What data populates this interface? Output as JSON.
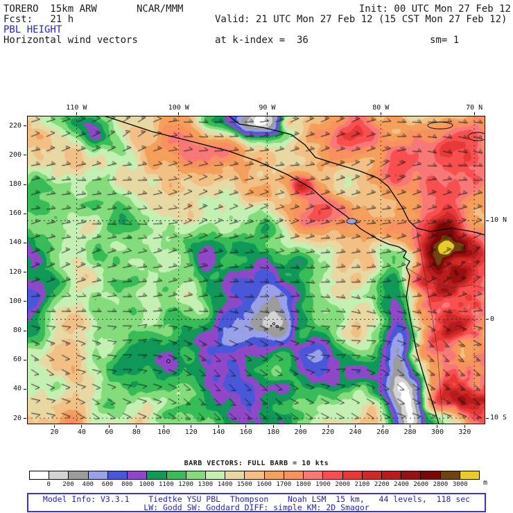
{
  "header": {
    "model": "TORERO  15km ARW",
    "center": "NCAR/MMM",
    "init": "Init: 00 UTC Mon 27 Feb 12",
    "fcst": "Fcst:   21 h",
    "valid": "Valid: 21 UTC Mon 27 Feb 12 (15 CST Mon 27 Feb 12)",
    "field": "PBL HEIGHT",
    "subtitle": "Horizontal wind vectors",
    "level": "at k-index =  36",
    "smoothing": "sm= 1"
  },
  "chart_data": {
    "type": "heatmap",
    "title": "PBL HEIGHT",
    "units": "m",
    "x_axis": {
      "ticks": [
        20,
        40,
        60,
        80,
        100,
        120,
        140,
        160,
        180,
        200,
        220,
        240,
        260,
        280,
        300,
        320
      ],
      "range": [
        0,
        335
      ]
    },
    "y_axis": {
      "ticks": [
        220,
        200,
        180,
        160,
        140,
        120,
        100,
        80,
        60,
        40,
        20
      ],
      "range": [
        16,
        227
      ]
    },
    "top_axis": {
      "labels": [
        "110 W",
        "100 W",
        "90 W",
        "80 W",
        "70 N"
      ],
      "fractions": [
        0.108,
        0.331,
        0.524,
        0.772,
        0.976
      ]
    },
    "right_axis": {
      "labels": [
        "10 N",
        "0",
        "10 S"
      ],
      "fractions": [
        0.34,
        0.66,
        0.98
      ]
    },
    "levels": [
      0,
      200,
      400,
      600,
      800,
      1000,
      1100,
      1200,
      1300,
      1400,
      1500,
      1600,
      1700,
      1800,
      1900,
      2000,
      2100,
      2200,
      2400,
      2600,
      2800,
      3000
    ],
    "palette": [
      "#ffffff",
      "#d3d3d3",
      "#9c9c9c",
      "#98a0e8",
      "#4858d8",
      "#9048c8",
      "#109858",
      "#38bc58",
      "#84dc7c",
      "#c4f0b4",
      "#e8d8a4",
      "#f2c084",
      "#f4a05c",
      "#f89060",
      "#f87878",
      "#f85050",
      "#e83838",
      "#d02828",
      "#b81c1c",
      "#981010",
      "#780808",
      "#6e4410",
      "#e8cc28"
    ],
    "wind_barbs": {
      "full_barb_kts": 10
    }
  },
  "legend": {
    "barb_text": "BARB VECTORS: FULL BARB = 10 kts",
    "units": "m"
  },
  "footer": {
    "line1": "Model Info: V3.3.1    Tiedtke YSU PBL  Thompson    Noah LSM  15 km,   44 levels,  118 sec",
    "line2": "LW: Godd SW: Goddard DIFF: simple KM: 2D Smagor"
  }
}
